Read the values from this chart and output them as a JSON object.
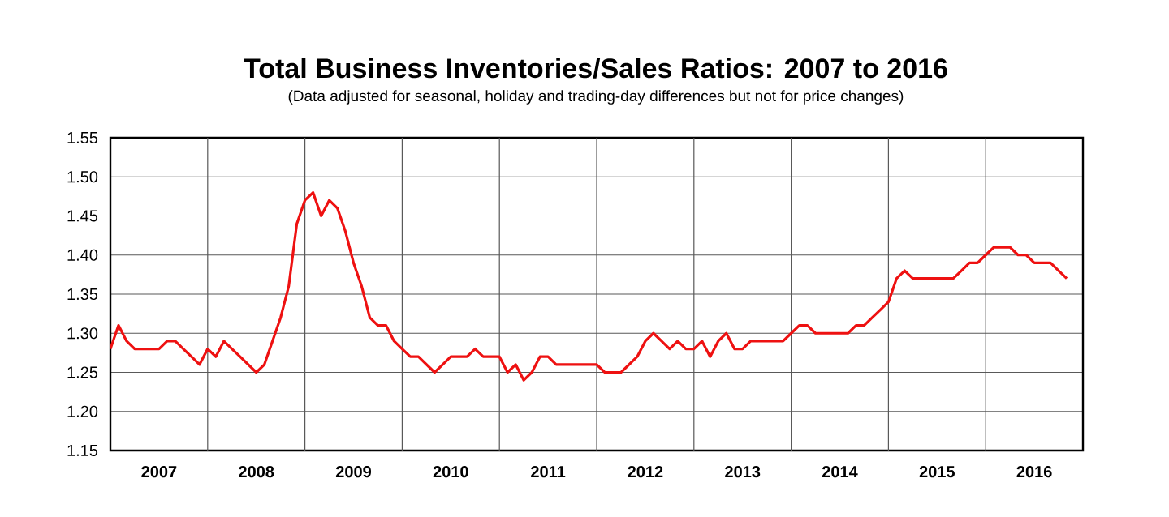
{
  "chart_data": {
    "type": "line",
    "title": "Total Business Inventories/Sales Ratios: 2007 to 2016",
    "subtitle": "(Data adjusted for seasonal, holiday and trading-day differences but not for price changes)",
    "x": [
      "2007-01",
      "2007-02",
      "2007-03",
      "2007-04",
      "2007-05",
      "2007-06",
      "2007-07",
      "2007-08",
      "2007-09",
      "2007-10",
      "2007-11",
      "2007-12",
      "2008-01",
      "2008-02",
      "2008-03",
      "2008-04",
      "2008-05",
      "2008-06",
      "2008-07",
      "2008-08",
      "2008-09",
      "2008-10",
      "2008-11",
      "2008-12",
      "2009-01",
      "2009-02",
      "2009-03",
      "2009-04",
      "2009-05",
      "2009-06",
      "2009-07",
      "2009-08",
      "2009-09",
      "2009-10",
      "2009-11",
      "2009-12",
      "2010-01",
      "2010-02",
      "2010-03",
      "2010-04",
      "2010-05",
      "2010-06",
      "2010-07",
      "2010-08",
      "2010-09",
      "2010-10",
      "2010-11",
      "2010-12",
      "2011-01",
      "2011-02",
      "2011-03",
      "2011-04",
      "2011-05",
      "2011-06",
      "2011-07",
      "2011-08",
      "2011-09",
      "2011-10",
      "2011-11",
      "2011-12",
      "2012-01",
      "2012-02",
      "2012-03",
      "2012-04",
      "2012-05",
      "2012-06",
      "2012-07",
      "2012-08",
      "2012-09",
      "2012-10",
      "2012-11",
      "2012-12",
      "2013-01",
      "2013-02",
      "2013-03",
      "2013-04",
      "2013-05",
      "2013-06",
      "2013-07",
      "2013-08",
      "2013-09",
      "2013-10",
      "2013-11",
      "2013-12",
      "2014-01",
      "2014-02",
      "2014-03",
      "2014-04",
      "2014-05",
      "2014-06",
      "2014-07",
      "2014-08",
      "2014-09",
      "2014-10",
      "2014-11",
      "2014-12",
      "2015-01",
      "2015-02",
      "2015-03",
      "2015-04",
      "2015-05",
      "2015-06",
      "2015-07",
      "2015-08",
      "2015-09",
      "2015-10",
      "2015-11",
      "2015-12",
      "2016-01",
      "2016-02",
      "2016-03",
      "2016-04",
      "2016-05",
      "2016-06",
      "2016-07",
      "2016-08",
      "2016-09",
      "2016-10",
      "2016-11"
    ],
    "values": [
      1.28,
      1.31,
      1.29,
      1.28,
      1.28,
      1.28,
      1.28,
      1.29,
      1.29,
      1.28,
      1.27,
      1.26,
      1.28,
      1.27,
      1.29,
      1.28,
      1.27,
      1.26,
      1.25,
      1.26,
      1.29,
      1.32,
      1.36,
      1.44,
      1.47,
      1.48,
      1.45,
      1.47,
      1.46,
      1.43,
      1.39,
      1.36,
      1.32,
      1.31,
      1.31,
      1.29,
      1.28,
      1.27,
      1.27,
      1.26,
      1.25,
      1.26,
      1.27,
      1.27,
      1.27,
      1.28,
      1.27,
      1.27,
      1.27,
      1.25,
      1.26,
      1.24,
      1.25,
      1.27,
      1.27,
      1.26,
      1.26,
      1.26,
      1.26,
      1.26,
      1.26,
      1.25,
      1.25,
      1.25,
      1.26,
      1.27,
      1.29,
      1.3,
      1.29,
      1.28,
      1.29,
      1.28,
      1.28,
      1.29,
      1.27,
      1.29,
      1.3,
      1.28,
      1.28,
      1.29,
      1.29,
      1.29,
      1.29,
      1.29,
      1.3,
      1.31,
      1.31,
      1.3,
      1.3,
      1.3,
      1.3,
      1.3,
      1.31,
      1.31,
      1.32,
      1.33,
      1.34,
      1.37,
      1.38,
      1.37,
      1.37,
      1.37,
      1.37,
      1.37,
      1.37,
      1.38,
      1.39,
      1.39,
      1.4,
      1.41,
      1.41,
      1.41,
      1.4,
      1.4,
      1.39,
      1.39,
      1.39,
      1.38,
      1.37
    ],
    "color": "#ee1111",
    "xlim": [
      "2007",
      "2017"
    ],
    "xticks": [
      {
        "value": "2007-07",
        "label": "2007"
      },
      {
        "value": "2008-07",
        "label": "2008"
      },
      {
        "value": "2009-07",
        "label": "2009"
      },
      {
        "value": "2010-07",
        "label": "2010"
      },
      {
        "value": "2011-07",
        "label": "2011"
      },
      {
        "value": "2012-07",
        "label": "2012"
      },
      {
        "value": "2013-07",
        "label": "2013"
      },
      {
        "value": "2014-07",
        "label": "2014"
      },
      {
        "value": "2015-07",
        "label": "2015"
      },
      {
        "value": "2016-07",
        "label": "2016"
      },
      {
        "value": "2008",
        "label": null
      },
      {
        "value": "2009",
        "label": null
      },
      {
        "value": "2010",
        "label": null
      },
      {
        "value": "2011",
        "label": null
      },
      {
        "value": "2012",
        "label": null
      },
      {
        "value": "2013",
        "label": null
      },
      {
        "value": "2014",
        "label": null
      },
      {
        "value": "2015",
        "label": null
      },
      {
        "value": "2016",
        "label": null
      }
    ],
    "ylim": [
      1.15,
      1.55
    ],
    "yticks": [
      1.15,
      {
        "value": 1.2,
        "label": "1.20"
      },
      1.25,
      {
        "value": 1.3,
        "label": "1.30"
      },
      1.35,
      {
        "value": 1.4,
        "label": "1.40"
      },
      1.45,
      {
        "value": 1.5,
        "label": "1.50"
      },
      1.55
    ],
    "grid": true,
    "marker": "none",
    "line_style": "solid"
  }
}
